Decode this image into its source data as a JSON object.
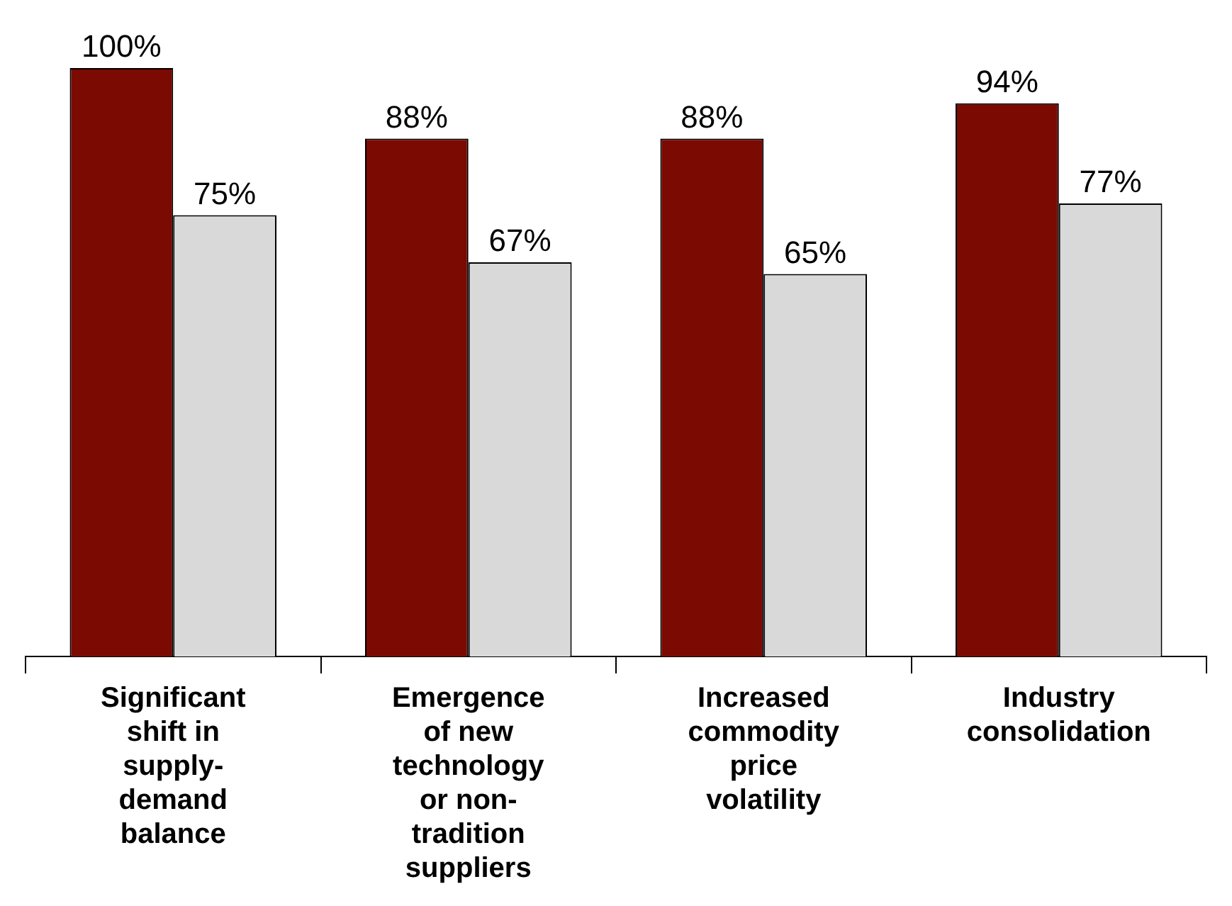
{
  "chart_data": {
    "type": "bar",
    "categories": [
      "Significant shift in supply-demand balance",
      "Emergence of new technology or non-tradition suppliers",
      "Increased commodity price volatility",
      "Industry consolidation"
    ],
    "series": [
      {
        "color": "#7b0a02",
        "values": [
          100,
          88,
          88,
          94
        ],
        "value_labels": [
          "100%",
          "88%",
          "88%",
          "94%"
        ]
      },
      {
        "color": "#d9d9d9",
        "values": [
          75,
          67,
          65,
          77
        ],
        "value_labels": [
          "75%",
          "67%",
          "65%",
          "77%"
        ]
      }
    ],
    "grid": false,
    "legend": false
  }
}
